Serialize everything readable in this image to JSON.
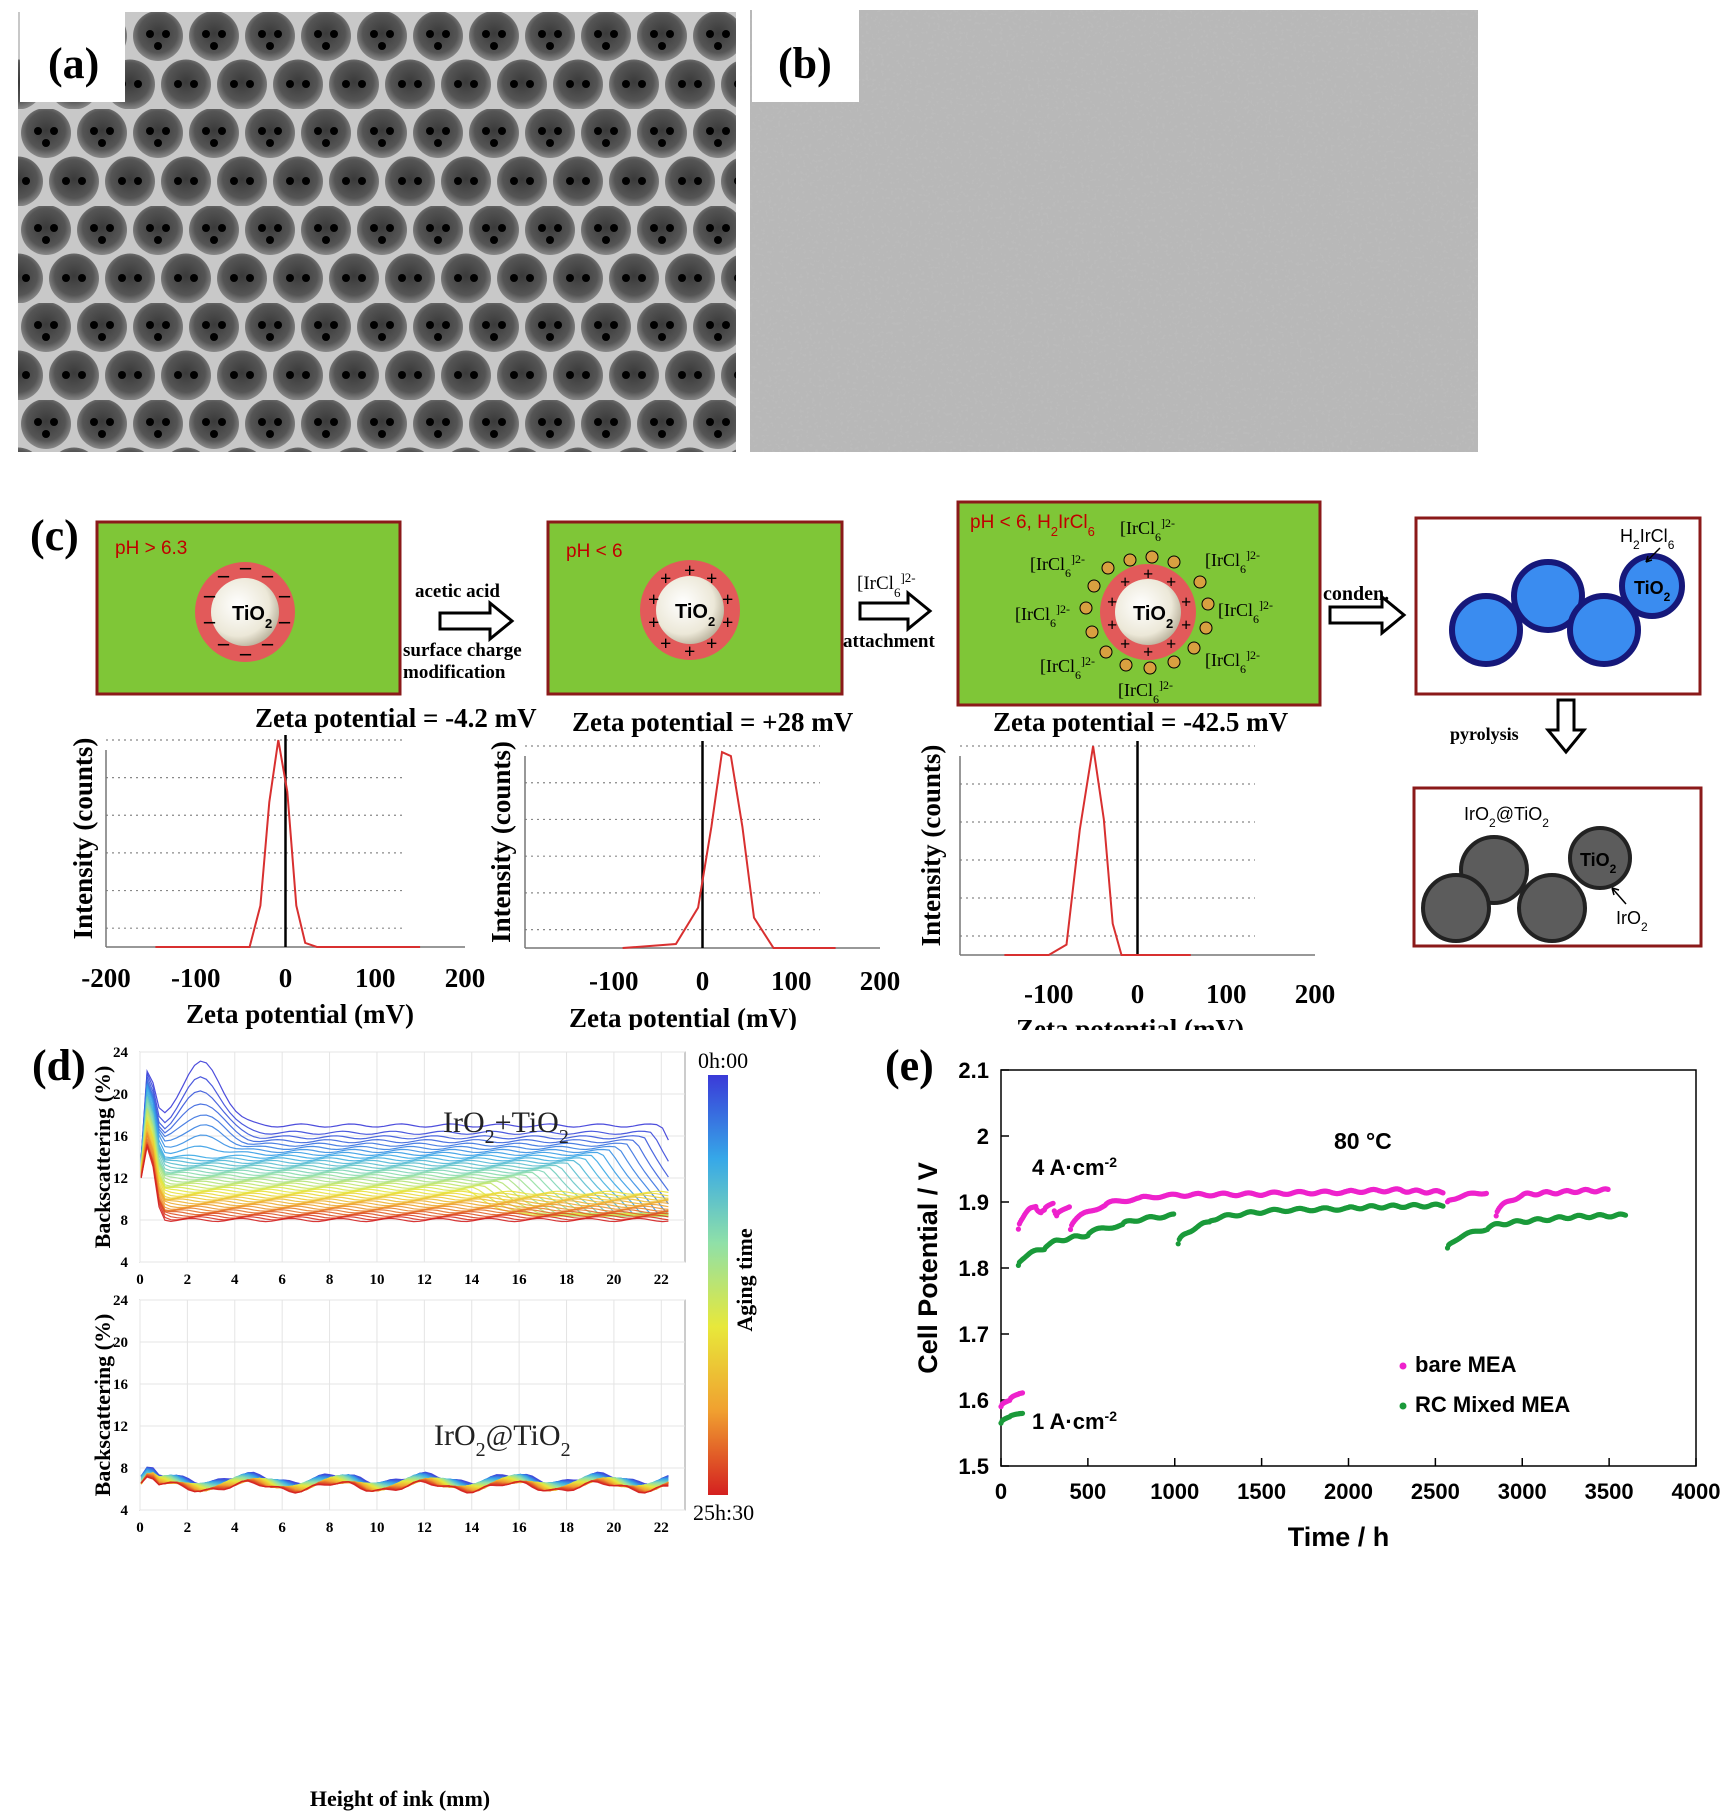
{
  "panels": {
    "a": {
      "letter": "(a)"
    },
    "b": {
      "letter": "(b)"
    },
    "c": {
      "letter": "(c)"
    },
    "d": {
      "letter": "(d)"
    },
    "e": {
      "letter": "(e)"
    }
  },
  "scheme": {
    "box1_ph": "pH > 6.3",
    "box2_ph": "pH < 6",
    "box3_ph": "pH < 6, H",
    "box3_ph_sub": "2",
    "box3_ph_rest": "IrCl",
    "box3_ph_sub2": "6",
    "tio2": "TiO",
    "tio2_sub": "2",
    "arrow1_top": "acetic acid",
    "arrow1_bottom1": "surface charge",
    "arrow1_bottom2": "modification",
    "arrow2_top": "[IrCl",
    "arrow2_top_sub": "6",
    "arrow2_top_sup": "]2-",
    "arrow2_bottom": "attachment",
    "arrow3_label": "conden.",
    "arrow4_label": "pyrolysis",
    "irc16": "[IrCl",
    "irc16_sub": "6",
    "irc16_sup": "]2-",
    "h2ircl6": "H",
    "h2ircl6_sub": "2",
    "h2ircl6_rest": "IrCl",
    "h2ircl6_sub2": "6",
    "iro2tio2": "IrO",
    "iro2tio2_sub": "2",
    "iro2tio2_rest": "@TiO",
    "iro2tio2_sub2": "2",
    "iro2": "IrO",
    "iro2_sub": "2"
  },
  "chart_data": [
    {
      "id": "c1",
      "type": "line",
      "title": "Zeta potential = -4.2 mV",
      "xlabel": "Zeta potential (mV)",
      "ylabel": "Intensity (counts)",
      "xticks": [
        "-200",
        "-100",
        "0",
        "100",
        "200"
      ],
      "xlim": [
        -200,
        200
      ],
      "series": [
        {
          "x": [
            -145,
            -40,
            -28,
            -18,
            -8,
            2,
            12,
            22,
            35,
            150
          ],
          "y": [
            0,
            0,
            0.2,
            0.7,
            1.0,
            0.75,
            0.2,
            0.02,
            0,
            0
          ]
        }
      ]
    },
    {
      "id": "c2",
      "type": "line",
      "title": "Zeta potential = +28 mV",
      "xlabel": "Zeta potential (mV)",
      "ylabel": "Intensity (counts)",
      "xticks": [
        "-100",
        "0",
        "100",
        "200"
      ],
      "xlim": [
        -200,
        200
      ],
      "series": [
        {
          "x": [
            -90,
            -30,
            -5,
            10,
            22,
            32,
            45,
            58,
            80,
            150
          ],
          "y": [
            0,
            0.02,
            0.2,
            0.6,
            0.97,
            0.95,
            0.6,
            0.15,
            0,
            0
          ]
        }
      ]
    },
    {
      "id": "c3",
      "type": "line",
      "title": "Zeta potential = -42.5 mV",
      "xlabel": "Zeta potential (mV)",
      "ylabel": "Intensity (counts)",
      "xticks": [
        "-100",
        "0",
        "100",
        "200"
      ],
      "xlim": [
        -200,
        200
      ],
      "series": [
        {
          "x": [
            -150,
            -100,
            -80,
            -65,
            -50,
            -38,
            -28,
            -18,
            0,
            60
          ],
          "y": [
            0,
            0,
            0.05,
            0.6,
            1.0,
            0.65,
            0.15,
            0,
            0,
            0
          ]
        }
      ]
    },
    {
      "id": "d",
      "type": "line",
      "xlabel": "Height of ink (mm)",
      "ylabel": "Backscattering (%)",
      "xticks": [
        "0",
        "2",
        "4",
        "6",
        "8",
        "10",
        "12",
        "14",
        "16",
        "18",
        "20",
        "22"
      ],
      "yticks": [
        "4",
        "8",
        "12",
        "16",
        "20",
        "24"
      ],
      "xlim": [
        0,
        23
      ],
      "ylim": [
        4,
        24
      ],
      "subplots": [
        {
          "label": "IrO",
          "label_sub": "2",
          "label_rest": "+TiO",
          "label_sub2": "2"
        },
        {
          "label": "IrO",
          "label_sub": "2",
          "label_rest": "@TiO",
          "label_sub2": "2"
        }
      ],
      "colorbar": {
        "label": "Aging time",
        "top": "0h:00",
        "bottom": "25h:30",
        "colors": [
          "#3a3ad8",
          "#36a8e8",
          "#8fe0a8",
          "#e8e83a",
          "#f0a030",
          "#d42020"
        ]
      }
    },
    {
      "id": "e",
      "type": "scatter",
      "xlabel": "Time / h",
      "ylabel": "Cell Potential / V",
      "xticks": [
        "0",
        "500",
        "1000",
        "1500",
        "2000",
        "2500",
        "3000",
        "3500",
        "4000"
      ],
      "yticks": [
        "1.5",
        "1.6",
        "1.7",
        "1.8",
        "1.9",
        "2",
        "2.1"
      ],
      "xlim": [
        0,
        4000
      ],
      "ylim": [
        1.5,
        2.1
      ],
      "annotations": {
        "temp": "80 °C",
        "hi": "4 A·cm",
        "hi_sup": "-2",
        "lo": "1 A·cm",
        "lo_sup": "-2"
      },
      "series": [
        {
          "name": "bare MEA",
          "color": "#ee22cc",
          "segments": [
            [
              [
                100,
                1.86
              ],
              [
                200,
                1.895
              ],
              [
                230,
                1.885
              ],
              [
                250,
                1.89
              ],
              [
                300,
                1.9
              ],
              [
                320,
                1.88
              ],
              [
                400,
                1.895
              ]
            ],
            [
              [
                400,
                1.86
              ],
              [
                600,
                1.895
              ],
              [
                800,
                1.905
              ],
              [
                1000,
                1.91
              ],
              [
                1500,
                1.912
              ],
              [
                2000,
                1.915
              ],
              [
                2300,
                1.918
              ],
              [
                2550,
                1.915
              ]
            ],
            [
              [
                2570,
                1.9
              ],
              [
                2800,
                1.915
              ]
            ],
            [
              [
                2850,
                1.88
              ],
              [
                3000,
                1.91
              ],
              [
                3250,
                1.915
              ],
              [
                3500,
                1.918
              ]
            ]
          ]
        },
        {
          "name": "RC Mixed MEA",
          "color": "#1a9a3a",
          "segments": [
            [
              [
                100,
                1.805
              ],
              [
                250,
                1.83
              ],
              [
                500,
                1.85
              ],
              [
                700,
                1.865
              ],
              [
                1000,
                1.88
              ]
            ],
            [
              [
                1020,
                1.835
              ],
              [
                1200,
                1.87
              ],
              [
                1500,
                1.885
              ],
              [
                2000,
                1.89
              ],
              [
                2550,
                1.895
              ]
            ],
            [
              [
                2570,
                1.83
              ],
              [
                2800,
                1.86
              ],
              [
                3200,
                1.875
              ],
              [
                3600,
                1.88
              ]
            ]
          ]
        },
        {
          "name": "bare MEA 1 A",
          "color": "#ee22cc",
          "segments": [
            [
              [
                0,
                1.59
              ],
              [
                50,
                1.6
              ],
              [
                100,
                1.61
              ],
              [
                130,
                1.613
              ]
            ]
          ]
        },
        {
          "name": "RC Mixed MEA 1 A",
          "color": "#1a9a3a",
          "segments": [
            [
              [
                0,
                1.565
              ],
              [
                50,
                1.575
              ],
              [
                100,
                1.58
              ],
              [
                130,
                1.582
              ]
            ]
          ]
        }
      ],
      "legend": [
        "bare MEA",
        "RC Mixed MEA"
      ]
    }
  ]
}
